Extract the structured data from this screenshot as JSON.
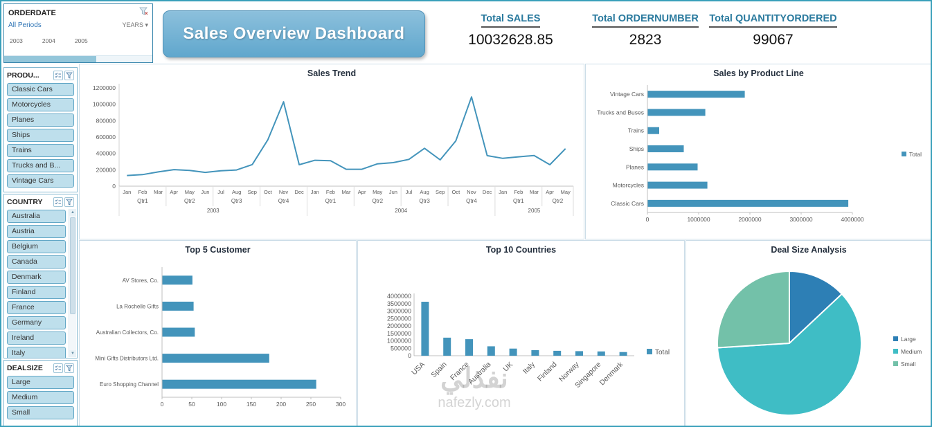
{
  "banner": {
    "title": "Sales Overview Dashboard"
  },
  "timeline": {
    "header": "ORDERDATE",
    "period": "All Periods",
    "granularity": "YEARS",
    "years": [
      "2003",
      "2004",
      "2005"
    ]
  },
  "kpis": [
    {
      "label": "Total SALES",
      "value": "10032628.85"
    },
    {
      "label": "Total ORDERNUMBER",
      "value": "2823"
    },
    {
      "label": "Total QUANTITYORDERED",
      "value": "99067"
    }
  ],
  "slicers": {
    "productline": {
      "header": "PRODU...",
      "items": [
        "Classic Cars",
        "Motorcycles",
        "Planes",
        "Ships",
        "Trains",
        "Trucks and B...",
        "Vintage Cars"
      ]
    },
    "country": {
      "header": "COUNTRY",
      "items": [
        "Australia",
        "Austria",
        "Belgium",
        "Canada",
        "Denmark",
        "Finland",
        "France",
        "Germany",
        "Ireland",
        "Italy"
      ]
    },
    "dealsize": {
      "header": "DEALSIZE",
      "items": [
        "Large",
        "Medium",
        "Small"
      ]
    }
  },
  "watermark": {
    "arabic": "نفذلي",
    "domain": "nafezly.com"
  },
  "colors": {
    "accent": "#4394bb",
    "banner": "#68abcf"
  },
  "chart_data": [
    {
      "id": "sales-trend",
      "type": "line",
      "title": "Sales Trend",
      "color": "#4394bb",
      "ylim": [
        0,
        1200000
      ],
      "ytick_step": 200000,
      "x_months": [
        "Jan",
        "Feb",
        "Mar",
        "Apr",
        "May",
        "Jun",
        "Jul",
        "Aug",
        "Sep",
        "Oct",
        "Nov",
        "Dec",
        "Jan",
        "Feb",
        "Mar",
        "Apr",
        "May",
        "Jun",
        "Jul",
        "Aug",
        "Sep",
        "Oct",
        "Nov",
        "Dec",
        "Jan",
        "Feb",
        "Mar",
        "Apr",
        "May"
      ],
      "x_quarters": [
        {
          "label": "Qtr1",
          "span": 3
        },
        {
          "label": "Qtr2",
          "span": 3
        },
        {
          "label": "Qtr3",
          "span": 3
        },
        {
          "label": "Qtr4",
          "span": 3
        },
        {
          "label": "Qtr1",
          "span": 3
        },
        {
          "label": "Qtr2",
          "span": 3
        },
        {
          "label": "Qtr3",
          "span": 3
        },
        {
          "label": "Qtr4",
          "span": 3
        },
        {
          "label": "Qtr1",
          "span": 3
        },
        {
          "label": "Qtr2",
          "span": 2
        }
      ],
      "x_years": [
        {
          "label": "2003",
          "span": 12
        },
        {
          "label": "2004",
          "span": 12
        },
        {
          "label": "2005",
          "span": 5
        }
      ],
      "series": [
        {
          "name": "Total",
          "values": [
            130000,
            141000,
            174000,
            202000,
            193000,
            168000,
            188000,
            198000,
            264000,
            568000,
            1030000,
            262000,
            316000,
            311000,
            206000,
            206000,
            273000,
            287000,
            327000,
            462000,
            321000,
            553000,
            1089000,
            373000,
            340000,
            358000,
            374000,
            262000,
            458000
          ]
        }
      ]
    },
    {
      "id": "sales-by-product-line",
      "type": "bar_h",
      "title": "Sales by Product Line",
      "color": "#4394bb",
      "categories": [
        "Vintage Cars",
        "Trucks and Buses",
        "Trains",
        "Ships",
        "Planes",
        "Motorcycles",
        "Classic Cars"
      ],
      "values": [
        1900000,
        1130000,
        230000,
        710000,
        980000,
        1170000,
        3920000
      ],
      "xlim": [
        0,
        4000000
      ],
      "xtick_step": 1000000,
      "legend": [
        "Total"
      ],
      "legend_position": "right"
    },
    {
      "id": "top-5-customer",
      "type": "bar_h",
      "title": "Top 5 Customer",
      "color": "#4394bb",
      "categories": [
        "AV Stores, Co.",
        "La Rochelle Gifts",
        "Australian Collectors, Co.",
        "Mini Gifts Distributors Ltd.",
        "Euro Shopping Channel"
      ],
      "values": [
        51,
        53,
        55,
        180,
        259
      ],
      "xlim": [
        0,
        300
      ],
      "xtick_step": 50
    },
    {
      "id": "top-10-countries",
      "type": "bar",
      "title": "Top 10 Countries",
      "color": "#4394bb",
      "categories": [
        "USA",
        "Spain",
        "France",
        "Australia",
        "UK",
        "Italy",
        "Finland",
        "Norway",
        "Singapore",
        "Denmark"
      ],
      "values": [
        3628000,
        1216000,
        1111000,
        631000,
        479000,
        375000,
        330000,
        307000,
        288000,
        246000
      ],
      "ylim": [
        0,
        4000000
      ],
      "ytick_step": 500000,
      "legend": [
        "Total"
      ],
      "legend_position": "right"
    },
    {
      "id": "deal-size",
      "type": "pie",
      "title": "Deal Size Analysis",
      "slices": [
        {
          "label": "Large",
          "value": 13,
          "color": "#2d7fb5"
        },
        {
          "label": "Medium",
          "value": 61,
          "color": "#3fbdc5"
        },
        {
          "label": "Small",
          "value": 26,
          "color": "#73c1a9"
        }
      ],
      "legend_position": "right"
    }
  ]
}
